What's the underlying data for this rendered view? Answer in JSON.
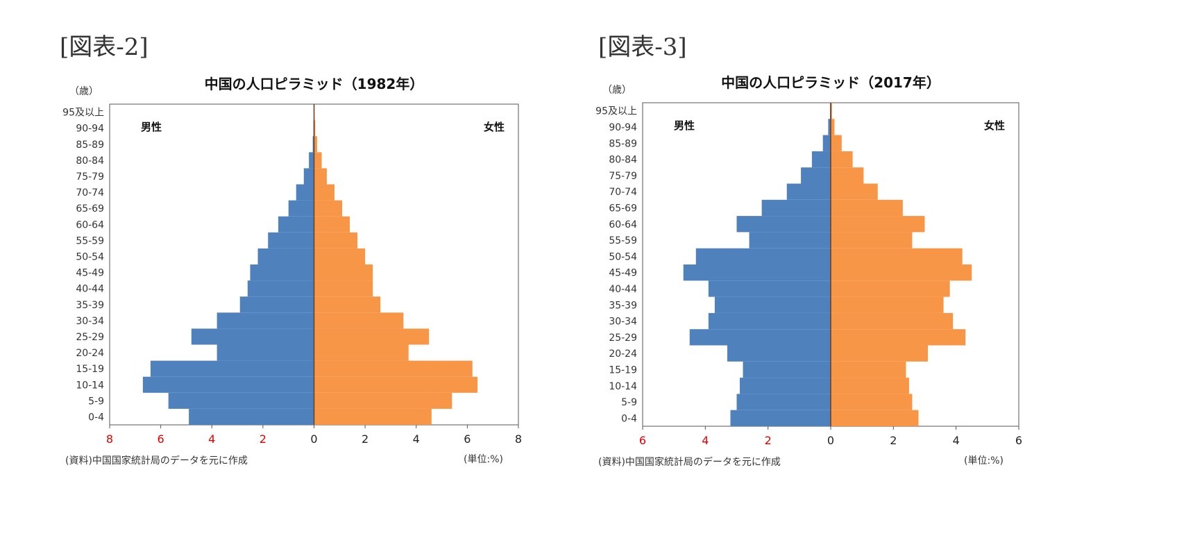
{
  "figures": [
    {
      "heading": "[図表-2]"
    },
    {
      "heading": "[図表-3]"
    }
  ],
  "chart_data": [
    {
      "type": "bar",
      "orientation": "population-pyramid",
      "title": "中国の人口ピラミッド（1982年）",
      "ylabel": "（歳）",
      "unit_note": "(単位:%)",
      "source_note": "(資料)中国国家統計局のデータを元に作成",
      "left_label": "男性",
      "right_label": "女性",
      "categories": [
        "0-4",
        "5-9",
        "10-14",
        "15-19",
        "20-24",
        "25-29",
        "30-34",
        "35-39",
        "40-44",
        "45-49",
        "50-54",
        "55-59",
        "60-64",
        "65-69",
        "70-74",
        "75-79",
        "80-84",
        "85-89",
        "90-94",
        "95及以上"
      ],
      "xlim": [
        -8,
        8
      ],
      "xticks": [
        "8",
        "6",
        "4",
        "2",
        "0",
        "2",
        "4",
        "6",
        "8"
      ],
      "series": [
        {
          "name": "男性",
          "color": "#4f81bd",
          "values": [
            4.9,
            5.7,
            6.7,
            6.4,
            3.8,
            4.8,
            3.8,
            2.9,
            2.6,
            2.5,
            2.2,
            1.8,
            1.4,
            1.0,
            0.7,
            0.4,
            0.2,
            0.05,
            0.02,
            0.01
          ]
        },
        {
          "name": "女性",
          "color": "#f79646",
          "values": [
            4.6,
            5.4,
            6.4,
            6.2,
            3.7,
            4.5,
            3.5,
            2.6,
            2.3,
            2.3,
            2.0,
            1.7,
            1.4,
            1.1,
            0.8,
            0.5,
            0.3,
            0.12,
            0.05,
            0.02
          ]
        }
      ]
    },
    {
      "type": "bar",
      "orientation": "population-pyramid",
      "title": "中国の人口ピラミッド（2017年）",
      "ylabel": "（歳）",
      "unit_note": "(単位:%)",
      "source_note": "(資料)中国国家統計局のデータを元に作成",
      "left_label": "男性",
      "right_label": "女性",
      "categories": [
        "0-4",
        "5-9",
        "10-14",
        "15-19",
        "20-24",
        "25-29",
        "30-34",
        "35-39",
        "40-44",
        "45-49",
        "50-54",
        "55-59",
        "60-64",
        "65-69",
        "70-74",
        "75-79",
        "80-84",
        "85-89",
        "90-94",
        "95及以上"
      ],
      "xlim": [
        -6,
        6
      ],
      "xticks": [
        "6",
        "4",
        "2",
        "0",
        "2",
        "4",
        "6"
      ],
      "series": [
        {
          "name": "男性",
          "color": "#4f81bd",
          "values": [
            3.2,
            3.0,
            2.9,
            2.8,
            3.3,
            4.5,
            3.9,
            3.7,
            3.9,
            4.7,
            4.3,
            2.6,
            3.0,
            2.2,
            1.4,
            0.95,
            0.6,
            0.25,
            0.08,
            0.02
          ]
        },
        {
          "name": "女性",
          "color": "#f79646",
          "values": [
            2.8,
            2.6,
            2.5,
            2.4,
            3.1,
            4.3,
            3.9,
            3.6,
            3.8,
            4.5,
            4.2,
            2.6,
            3.0,
            2.3,
            1.5,
            1.05,
            0.7,
            0.35,
            0.12,
            0.04
          ]
        }
      ]
    }
  ]
}
